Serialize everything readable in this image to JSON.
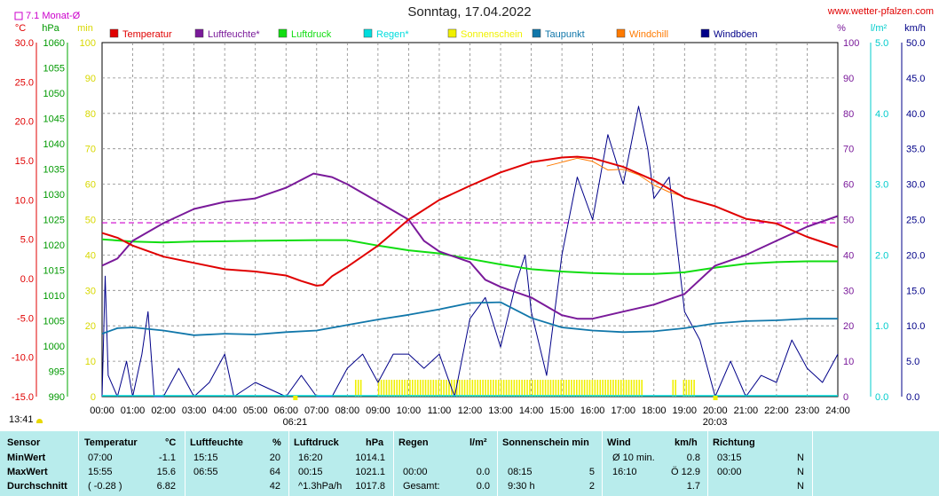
{
  "title": "Sonntag, 17.04.2022",
  "site": "www.wetter-pfalzen.com",
  "colors": {
    "temperature": "#e00000",
    "humidity": "#7a1a9a",
    "pressure": "#11dd11",
    "rain": "#00dddd",
    "sunshine": "#f0f000",
    "dewpoint": "#1177aa",
    "windchill": "#ff7a00",
    "gusts": "#000088",
    "grid": "#888888",
    "avg": "#cc00cc"
  },
  "legend": {
    "avg_marker": "7.1 Monat-Ø",
    "items": [
      {
        "label": "Temperatur",
        "color": "#e00000"
      },
      {
        "label": "Luftfeuchte*",
        "color": "#7a1a9a"
      },
      {
        "label": "Luftdruck",
        "color": "#11dd11"
      },
      {
        "label": "Regen*",
        "color": "#00dddd"
      },
      {
        "label": "Sonnenschein",
        "color": "#f0f000"
      },
      {
        "label": "Taupunkt",
        "color": "#1177aa"
      },
      {
        "label": "Windchill",
        "color": "#ff7a00"
      },
      {
        "label": "Windböen",
        "color": "#000088"
      }
    ]
  },
  "axes": {
    "units": {
      "temp": "°C",
      "pressure": "hPa",
      "sun": "min",
      "humidity": "%",
      "rain": "l/m²",
      "wind": "km/h"
    },
    "temp_ticks": [
      "30.0",
      "25.0",
      "20.0",
      "15.0",
      "10.0",
      "5.0",
      "0.0",
      "-5.0",
      "-10.0",
      "-15.0"
    ],
    "pressure_ticks": [
      "1060",
      "1055",
      "1050",
      "1045",
      "1040",
      "1035",
      "1030",
      "1025",
      "1020",
      "1015",
      "1010",
      "1005",
      "1000",
      "995",
      "990"
    ],
    "sun_ticks": [
      "100",
      "90",
      "80",
      "70",
      "60",
      "50",
      "40",
      "30",
      "20",
      "10",
      "0"
    ],
    "humidity_ticks": [
      "100",
      "90",
      "80",
      "70",
      "60",
      "50",
      "40",
      "30",
      "20",
      "10",
      "0"
    ],
    "rain_ticks": [
      "5.0",
      "4.0",
      "3.0",
      "2.0",
      "1.0",
      "0.0"
    ],
    "wind_ticks": [
      "50.0",
      "45.0",
      "40.0",
      "35.0",
      "30.0",
      "25.0",
      "20.0",
      "15.0",
      "10.0",
      "5.0",
      "0.0"
    ],
    "time_ticks": [
      "00:00",
      "01:00",
      "02:00",
      "03:00",
      "04:00",
      "05:00",
      "06:00",
      "07:00",
      "08:00",
      "09:00",
      "10:00",
      "11:00",
      "12:00",
      "13:00",
      "14:00",
      "15:00",
      "16:00",
      "17:00",
      "18:00",
      "19:00",
      "20:00",
      "21:00",
      "22:00",
      "23:00",
      "24:00"
    ],
    "sunrise": "06:21",
    "sunset": "20:03",
    "current_time": "13:41"
  },
  "chart_data": {
    "type": "line",
    "x_unit": "hour",
    "temp_ylim": [
      -15,
      30
    ],
    "humidity_ylim": [
      0,
      100
    ],
    "wind_ylim": [
      0,
      50
    ],
    "month_avg_temp": 7.1,
    "series": [
      {
        "name": "Temperatur",
        "axis": "temp",
        "points": [
          [
            0,
            5.8
          ],
          [
            0.5,
            5.2
          ],
          [
            1,
            4.2
          ],
          [
            2,
            2.8
          ],
          [
            3,
            2.0
          ],
          [
            4,
            1.2
          ],
          [
            5,
            0.9
          ],
          [
            6,
            0.4
          ],
          [
            6.5,
            -0.3
          ],
          [
            7,
            -0.9
          ],
          [
            7.2,
            -0.8
          ],
          [
            7.5,
            0.3
          ],
          [
            8,
            1.5
          ],
          [
            9,
            4.2
          ],
          [
            10,
            7.5
          ],
          [
            11,
            10.0
          ],
          [
            12,
            11.8
          ],
          [
            13,
            13.5
          ],
          [
            14,
            14.8
          ],
          [
            15,
            15.4
          ],
          [
            15.5,
            15.5
          ],
          [
            16,
            15.3
          ],
          [
            17,
            14.2
          ],
          [
            18,
            12.5
          ],
          [
            19,
            10.3
          ],
          [
            20,
            9.2
          ],
          [
            21,
            7.6
          ],
          [
            22,
            7.0
          ],
          [
            23,
            5.3
          ],
          [
            24,
            4.0
          ]
        ]
      },
      {
        "name": "Windchill",
        "axis": "temp",
        "points": [
          [
            14.5,
            14.3
          ],
          [
            15,
            14.8
          ],
          [
            15.5,
            15.3
          ],
          [
            16,
            14.9
          ],
          [
            16.5,
            13.8
          ],
          [
            17,
            13.9
          ],
          [
            17.5,
            13.2
          ],
          [
            18,
            11.9
          ],
          [
            18.5,
            11.0
          ],
          [
            19,
            10.4
          ]
        ]
      },
      {
        "name": "Luftfeuchte",
        "axis": "humidity",
        "points": [
          [
            0,
            37
          ],
          [
            0.5,
            39
          ],
          [
            1,
            44
          ],
          [
            2,
            49
          ],
          [
            3,
            53
          ],
          [
            4,
            55
          ],
          [
            5,
            56
          ],
          [
            6,
            59
          ],
          [
            6.9,
            63
          ],
          [
            7.5,
            62
          ],
          [
            8,
            60
          ],
          [
            9,
            55
          ],
          [
            10,
            50
          ],
          [
            10.5,
            44
          ],
          [
            11,
            41
          ],
          [
            12,
            38
          ],
          [
            12.5,
            33
          ],
          [
            13,
            31
          ],
          [
            14,
            28
          ],
          [
            15,
            23
          ],
          [
            15.5,
            22
          ],
          [
            16,
            22
          ],
          [
            17,
            24
          ],
          [
            18,
            26
          ],
          [
            19,
            29
          ],
          [
            20,
            37
          ],
          [
            21,
            40
          ],
          [
            22,
            44
          ],
          [
            23,
            48
          ],
          [
            24,
            51
          ]
        ]
      },
      {
        "name": "Luftdruck",
        "axis": "temp",
        "points": [
          [
            0,
            5.0
          ],
          [
            1,
            4.7
          ],
          [
            2,
            4.6
          ],
          [
            3,
            4.7
          ],
          [
            5,
            4.8
          ],
          [
            7,
            4.9
          ],
          [
            8,
            4.9
          ],
          [
            9,
            4.2
          ],
          [
            10,
            3.6
          ],
          [
            11,
            3.2
          ],
          [
            12,
            2.5
          ],
          [
            13,
            1.8
          ],
          [
            14,
            1.2
          ],
          [
            15,
            0.9
          ],
          [
            16,
            0.7
          ],
          [
            17,
            0.6
          ],
          [
            18,
            0.6
          ],
          [
            19,
            0.8
          ],
          [
            20,
            1.4
          ],
          [
            21,
            1.9
          ],
          [
            22,
            2.1
          ],
          [
            23,
            2.2
          ],
          [
            24,
            2.2
          ]
        ]
      },
      {
        "name": "Taupunkt",
        "axis": "temp",
        "points": [
          [
            0,
            -7.0
          ],
          [
            0.5,
            -6.3
          ],
          [
            1,
            -6.2
          ],
          [
            2,
            -6.6
          ],
          [
            3,
            -7.2
          ],
          [
            4,
            -7.0
          ],
          [
            5,
            -7.1
          ],
          [
            6,
            -6.8
          ],
          [
            7,
            -6.6
          ],
          [
            8,
            -5.9
          ],
          [
            9,
            -5.2
          ],
          [
            10,
            -4.6
          ],
          [
            11,
            -3.9
          ],
          [
            12,
            -3.1
          ],
          [
            13,
            -3.0
          ],
          [
            14,
            -5.0
          ],
          [
            15,
            -6.2
          ],
          [
            16,
            -6.6
          ],
          [
            17,
            -6.8
          ],
          [
            18,
            -6.7
          ],
          [
            19,
            -6.3
          ],
          [
            20,
            -5.7
          ],
          [
            21,
            -5.4
          ],
          [
            22,
            -5.3
          ],
          [
            23,
            -5.1
          ],
          [
            24,
            -5.1
          ]
        ]
      },
      {
        "name": "Windböen",
        "axis": "wind",
        "points": [
          [
            0,
            0
          ],
          [
            0.1,
            17
          ],
          [
            0.2,
            3
          ],
          [
            0.5,
            0
          ],
          [
            0.8,
            5
          ],
          [
            1,
            0
          ],
          [
            1.3,
            6
          ],
          [
            1.5,
            12
          ],
          [
            1.7,
            0
          ],
          [
            2,
            0
          ],
          [
            2.5,
            4
          ],
          [
            3,
            0
          ],
          [
            3.5,
            2
          ],
          [
            4,
            6
          ],
          [
            4.3,
            0
          ],
          [
            5,
            2
          ],
          [
            6,
            0
          ],
          [
            6.5,
            3
          ],
          [
            7,
            0
          ],
          [
            7.5,
            0
          ],
          [
            8,
            4
          ],
          [
            8.5,
            6
          ],
          [
            9,
            2
          ],
          [
            9.5,
            6
          ],
          [
            10,
            6
          ],
          [
            10.5,
            4
          ],
          [
            11,
            6
          ],
          [
            11.5,
            0
          ],
          [
            12,
            11
          ],
          [
            12.5,
            14
          ],
          [
            13,
            7
          ],
          [
            13.5,
            16
          ],
          [
            13.8,
            20
          ],
          [
            14,
            12
          ],
          [
            14.5,
            3
          ],
          [
            15,
            20
          ],
          [
            15.5,
            31
          ],
          [
            16,
            25
          ],
          [
            16.5,
            37
          ],
          [
            17,
            30
          ],
          [
            17.5,
            41
          ],
          [
            17.8,
            35
          ],
          [
            18,
            28
          ],
          [
            18.5,
            31
          ],
          [
            19,
            12
          ],
          [
            19.5,
            8
          ],
          [
            20,
            0
          ],
          [
            20.5,
            5
          ],
          [
            21,
            0
          ],
          [
            21.5,
            3
          ],
          [
            22,
            2
          ],
          [
            22.5,
            8
          ],
          [
            23,
            4
          ],
          [
            23.5,
            2
          ],
          [
            24,
            6
          ]
        ]
      }
    ],
    "sunshine_intervals": [
      [
        8.25,
        8.5
      ],
      [
        9,
        17.6
      ],
      [
        18.6,
        18.75
      ],
      [
        18.95,
        19.3
      ]
    ],
    "stats": {
      "headers": {
        "sensor": "Sensor",
        "temp": "Temperatur",
        "temp_unit": "°C",
        "hum": "Luftfeuchte",
        "hum_unit": "%",
        "press": "Luftdruck",
        "press_unit": "hPa",
        "rain": "Regen",
        "rain_unit": "l/m²",
        "sun": "Sonnenschein min",
        "wind": "Wind",
        "wind_unit": "km/h",
        "dir": "Richtung"
      },
      "rows": [
        {
          "label": "MinWert",
          "temp_time": "07:00",
          "temp_val": "-1.1",
          "hum_time": "15:15",
          "hum_val": "20",
          "press_time": "16:20",
          "press_val": "1014.1",
          "rain_time": "",
          "rain_val": "",
          "sun_time": "",
          "sun_val": "",
          "wind_time": "Ø 10 min.",
          "wind_val": "0.8",
          "dir_time": "03:15",
          "dir_val": "N"
        },
        {
          "label": "MaxWert",
          "temp_time": "15:55",
          "temp_val": "15.6",
          "hum_time": "06:55",
          "hum_val": "64",
          "press_time": "00:15",
          "press_val": "1021.1",
          "rain_time": "00:00",
          "rain_val": "0.0",
          "sun_time": "08:15",
          "sun_val": "5",
          "wind_time": "16:10",
          "wind_val": "Ö 12.9",
          "dir_time": "00:00",
          "dir_val": "N"
        },
        {
          "label": "Durchschnitt",
          "temp_time": "( -0.28 )",
          "temp_val": "6.82",
          "hum_time": "",
          "hum_val": "42",
          "press_time": "^1.3hPa/h",
          "press_val": "1017.8",
          "rain_time": "Gesamt:",
          "rain_val": "0.0",
          "sun_time": "9:30 h",
          "sun_val": "2",
          "wind_time": "",
          "wind_val": "1.7",
          "dir_time": "",
          "dir_val": "N"
        }
      ]
    }
  }
}
